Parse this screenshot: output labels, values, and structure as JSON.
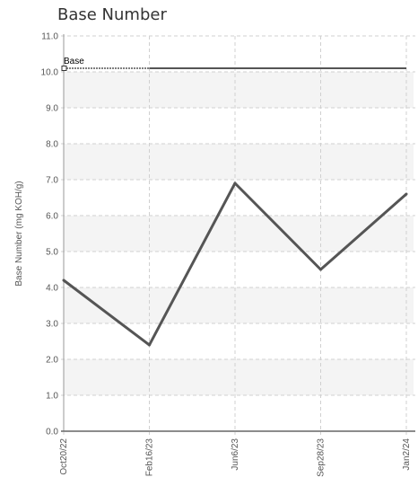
{
  "chart_data": {
    "type": "line",
    "title": "Base Number",
    "ylabel": "Base Number (mg KOH/g)",
    "xlabel": "",
    "ylim": [
      0,
      11
    ],
    "y_ticks": [
      "0.0",
      "1.0",
      "2.0",
      "3.0",
      "4.0",
      "5.0",
      "6.0",
      "7.0",
      "8.0",
      "9.0",
      "10.0",
      "11.0"
    ],
    "categories": [
      "Oct20/22",
      "Feb16/23",
      "Jun6/23",
      "Sep28/23",
      "Jan2/24"
    ],
    "series": [
      {
        "values": [
          4.2,
          2.4,
          6.9,
          4.5,
          6.6
        ],
        "color": "#555555"
      }
    ],
    "reference_line": {
      "label": "Base",
      "value": 10.1,
      "color": "#555555"
    },
    "grid": true,
    "band_colors": [
      "#f4f4f4",
      "#ffffff"
    ]
  }
}
